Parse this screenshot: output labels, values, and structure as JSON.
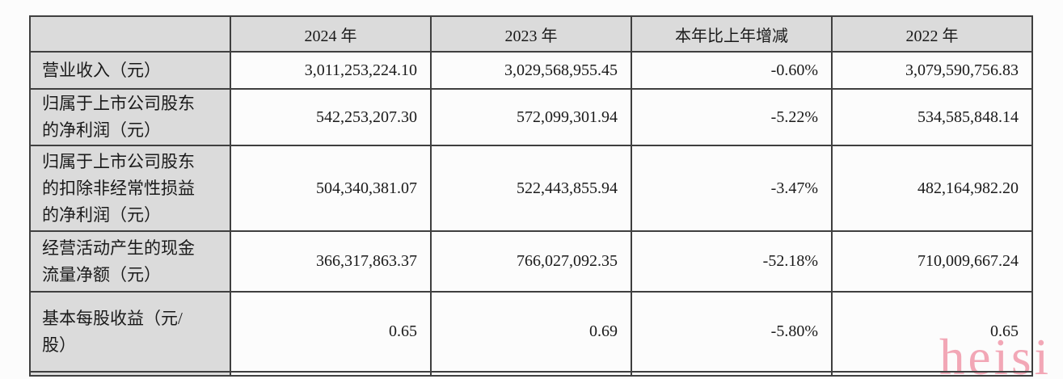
{
  "table": {
    "columns": [
      "",
      "2024 年",
      "2023 年",
      "本年比上年增减",
      "2022 年"
    ],
    "rows": [
      {
        "label": "营业收入（元）",
        "y2024": "3,011,253,224.10",
        "y2023": "3,029,568,955.45",
        "change": "-0.60%",
        "y2022": "3,079,590,756.83"
      },
      {
        "label": "归属于上市公司股东\n的净利润（元）",
        "y2024": "542,253,207.30",
        "y2023": "572,099,301.94",
        "change": "-5.22%",
        "y2022": "534,585,848.14"
      },
      {
        "label": "归属于上市公司股东\n的扣除非经常性损益\n的净利润（元）",
        "y2024": "504,340,381.07",
        "y2023": "522,443,855.94",
        "change": "-3.47%",
        "y2022": "482,164,982.20"
      },
      {
        "label": "经营活动产生的现金\n流量净额（元）",
        "y2024": "366,317,863.37",
        "y2023": "766,027,092.35",
        "change": "-52.18%",
        "y2022": "710,009,667.24"
      },
      {
        "label": "基本每股收益（元/\n股）",
        "y2024": "0.65",
        "y2023": "0.69",
        "change": "-5.80%",
        "y2022": "0.65"
      }
    ]
  },
  "watermark": {
    "text": "heisi"
  },
  "colors": {
    "header_and_label_gray": "#dbdbdb",
    "border": "#3f3f3f",
    "watermark_pink": "#f2a7b6"
  }
}
